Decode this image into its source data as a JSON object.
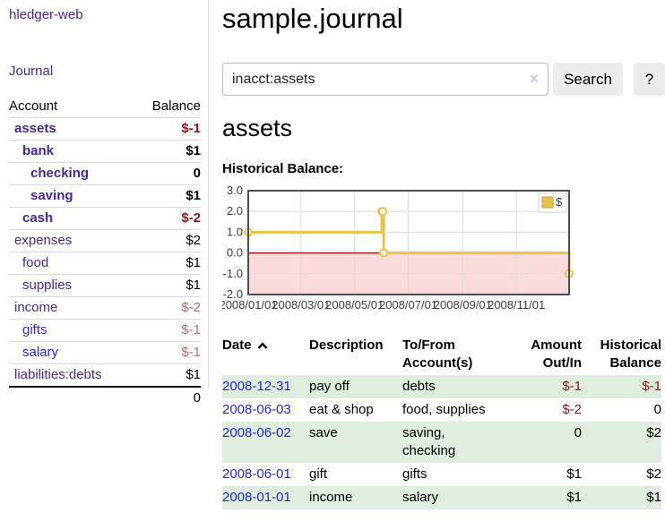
{
  "app": {
    "title": "hledger-web"
  },
  "sidebar": {
    "nav_journal": "Journal",
    "accounts_table": {
      "header_account": "Account",
      "header_balance": "Balance",
      "rows": [
        {
          "name": "assets",
          "balance": "$-1",
          "indent": 0,
          "bold": true,
          "link": "purple",
          "balance_tone": "neg-strong"
        },
        {
          "name": "bank",
          "balance": "$1",
          "indent": 1,
          "bold": true,
          "link": "purple",
          "balance_tone": ""
        },
        {
          "name": "checking",
          "balance": "0",
          "indent": 2,
          "bold": true,
          "link": "purple",
          "balance_tone": ""
        },
        {
          "name": "saving",
          "balance": "$1",
          "indent": 2,
          "bold": true,
          "link": "purple",
          "balance_tone": ""
        },
        {
          "name": "cash",
          "balance": "$-2",
          "indent": 1,
          "bold": true,
          "link": "purple",
          "balance_tone": "neg-strong"
        },
        {
          "name": "expenses",
          "balance": "$2",
          "indent": 0,
          "bold": false,
          "link": "purple",
          "balance_tone": ""
        },
        {
          "name": "food",
          "balance": "$1",
          "indent": 1,
          "bold": false,
          "link": "purple",
          "balance_tone": ""
        },
        {
          "name": "supplies",
          "balance": "$1",
          "indent": 1,
          "bold": false,
          "link": "purple",
          "balance_tone": ""
        },
        {
          "name": "income",
          "balance": "$-2",
          "indent": 0,
          "bold": false,
          "link": "purple",
          "balance_tone": "neg-soft"
        },
        {
          "name": "gifts",
          "balance": "$-1",
          "indent": 1,
          "bold": false,
          "link": "purple",
          "balance_tone": "neg-soft"
        },
        {
          "name": "salary",
          "balance": "$-1",
          "indent": 1,
          "bold": false,
          "link": "blue",
          "balance_tone": "neg-soft"
        },
        {
          "name": "liabilities:debts",
          "balance": "$1",
          "indent": 0,
          "bold": false,
          "link": "purple",
          "balance_tone": ""
        }
      ],
      "total": "0"
    }
  },
  "header": {
    "title": "sample.journal"
  },
  "search": {
    "value": "inacct:assets",
    "clear_icon": "×",
    "search_label": "Search",
    "help_label": "?"
  },
  "account_page": {
    "heading": "assets",
    "chart_heading": "Historical Balance:"
  },
  "chart_data": {
    "type": "line",
    "title": "Historical Balance",
    "step": true,
    "legend": {
      "label": "$",
      "position": "top-right"
    },
    "series": [
      {
        "name": "$",
        "points": [
          {
            "date": "2008-01-01",
            "day": 0,
            "y": 1
          },
          {
            "date": "2008-06-01",
            "day": 152,
            "y": 2
          },
          {
            "date": "2008-06-02",
            "day": 153,
            "y": 2
          },
          {
            "date": "2008-06-03",
            "day": 154,
            "y": 0
          },
          {
            "date": "2008-12-31",
            "day": 365,
            "y": -1
          }
        ]
      }
    ],
    "xlim_days": [
      0,
      365
    ],
    "ylim": [
      -2,
      3
    ],
    "yticks": [
      3.0,
      2.0,
      1.0,
      0.0,
      -1.0,
      -2.0
    ],
    "ytick_labels": [
      "3.0",
      "2.0",
      "1.0",
      "0.0",
      "-1.0",
      "-2.0"
    ],
    "xticks": [
      {
        "day": 0,
        "label": "2008/01/01"
      },
      {
        "day": 60,
        "label": "2008/03/01"
      },
      {
        "day": 121,
        "label": "2008/05/01"
      },
      {
        "day": 182,
        "label": "2008/07/01"
      },
      {
        "day": 244,
        "label": "2008/09/01"
      },
      {
        "day": 305,
        "label": "2008/11/01"
      }
    ],
    "grid": true,
    "colors": {
      "line": "#e9c24a",
      "marker_fill": "#ffffff",
      "negative_region": "#fadcdc",
      "zero_line": "#9a1b1b",
      "gridline": "#dcdcdc",
      "plot_border": "#4f4f4f",
      "legend_swatch": "#e8c24a"
    }
  },
  "register": {
    "headers": {
      "date": "Date",
      "description": "Description",
      "account": "To/From Account(s)",
      "amount": "Amount Out/In",
      "balance": "Historical Balance"
    },
    "sort": {
      "column": "date",
      "direction": "asc"
    },
    "rows": [
      {
        "date": "2008-12-31",
        "description": "pay off",
        "accounts": "debts",
        "amount": "$-1",
        "amount_negative": true,
        "balance": "$-1",
        "balance_negative": true
      },
      {
        "date": "2008-06-03",
        "description": "eat & shop",
        "accounts": "food, supplies",
        "amount": "$-2",
        "amount_negative": true,
        "balance": "0",
        "balance_negative": false
      },
      {
        "date": "2008-06-02",
        "description": "save",
        "accounts": "saving, checking",
        "amount": "0",
        "amount_negative": false,
        "balance": "$2",
        "balance_negative": false
      },
      {
        "date": "2008-06-01",
        "description": "gift",
        "accounts": "gifts",
        "amount": "$1",
        "amount_negative": false,
        "balance": "$2",
        "balance_negative": false
      },
      {
        "date": "2008-01-01",
        "description": "income",
        "accounts": "salary",
        "amount": "$1",
        "amount_negative": false,
        "balance": "$1",
        "balance_negative": false
      }
    ]
  }
}
